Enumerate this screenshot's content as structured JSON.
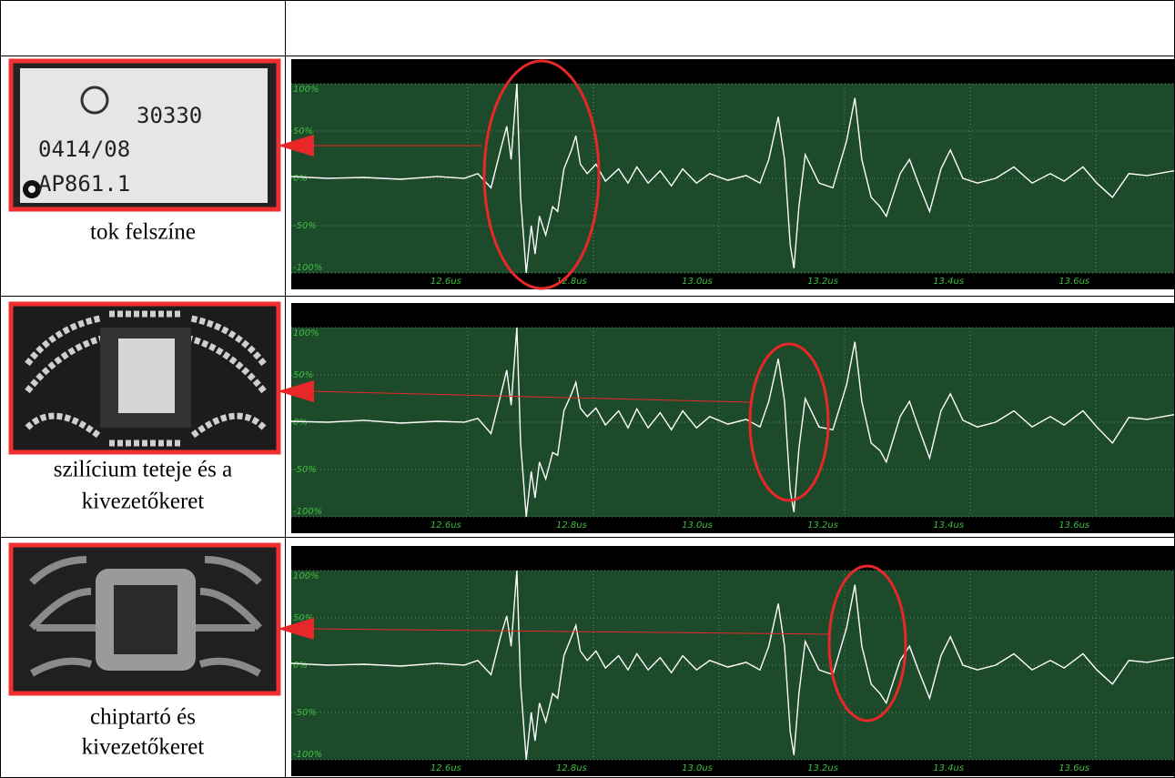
{
  "rows": [
    {
      "chip_label": [
        "30330",
        "0414/08",
        "AP861.1"
      ],
      "caption": [
        "tok felszíne"
      ]
    },
    {
      "caption": [
        "szilícium teteje és a",
        "kivezetőkeret"
      ]
    },
    {
      "caption": [
        "chiptartó és",
        "kivezetőkeret"
      ]
    }
  ],
  "chart_data": [
    {
      "type": "line",
      "x": [
        12.354,
        12.412,
        12.47,
        12.528,
        12.586,
        12.629,
        12.651,
        12.672,
        12.687,
        12.697,
        12.704,
        12.713,
        12.719,
        12.728,
        12.736,
        12.742,
        12.749,
        12.759,
        12.77,
        12.778,
        12.788,
        12.8,
        12.807,
        12.814,
        12.825,
        12.839,
        12.854,
        12.875,
        12.89,
        12.904,
        12.922,
        12.941,
        12.959,
        12.977,
        12.999,
        13.02,
        13.049,
        13.078,
        13.1,
        13.114,
        13.129,
        13.139,
        13.148,
        13.154,
        13.162,
        13.172,
        13.183,
        13.194,
        13.216,
        13.238,
        13.251,
        13.262,
        13.277,
        13.291,
        13.301,
        13.323,
        13.338,
        13.352,
        13.37,
        13.388,
        13.403,
        13.423,
        13.446,
        13.475,
        13.504,
        13.533,
        13.562,
        13.584,
        13.614,
        13.636,
        13.661,
        13.687,
        13.716,
        13.759
      ],
      "series": [
        {
          "color": "#ffffff",
          "values": [
            2,
            0,
            1,
            -1,
            2,
            0,
            5,
            -10,
            30,
            55,
            20,
            100,
            -20,
            -100,
            -50,
            -80,
            -40,
            -60,
            -30,
            -35,
            10,
            30,
            45,
            15,
            5,
            15,
            -3,
            10,
            -5,
            12,
            -5,
            8,
            -8,
            10,
            -5,
            5,
            -2,
            3,
            -5,
            20,
            65,
            20,
            -70,
            -95,
            -30,
            25,
            10,
            -5,
            -10,
            40,
            85,
            20,
            -20,
            -30,
            -40,
            5,
            20,
            -5,
            -35,
            10,
            30,
            0,
            -5,
            0,
            12,
            -5,
            5,
            -3,
            12,
            -5,
            -20,
            5,
            3,
            8
          ]
        }
      ],
      "xlim": [
        12.354,
        13.759
      ],
      "ylim": [
        -100,
        100
      ],
      "xticks": [
        {
          "value": 12.6,
          "label": "12.6us"
        },
        {
          "value": 12.8,
          "label": "12.8us"
        },
        {
          "value": 13.0,
          "label": "13.0us"
        },
        {
          "value": 13.2,
          "label": "13.2us"
        },
        {
          "value": 13.4,
          "label": "13.4us"
        },
        {
          "value": 13.6,
          "label": "13.6us"
        }
      ],
      "yticks": [
        {
          "value": 100,
          "label": "100%"
        },
        {
          "value": 50,
          "label": "50%"
        },
        {
          "value": 0,
          "label": "0%"
        },
        {
          "value": -50,
          "label": "-50%"
        },
        {
          "value": -100,
          "label": "-100%"
        }
      ],
      "grid": true
    },
    {
      "type": "line",
      "x": [
        12.354,
        12.412,
        12.47,
        12.528,
        12.586,
        12.629,
        12.651,
        12.672,
        12.687,
        12.697,
        12.704,
        12.713,
        12.719,
        12.728,
        12.736,
        12.742,
        12.749,
        12.759,
        12.77,
        12.778,
        12.788,
        12.8,
        12.807,
        12.814,
        12.825,
        12.839,
        12.854,
        12.875,
        12.89,
        12.904,
        12.922,
        12.941,
        12.959,
        12.977,
        12.999,
        13.02,
        13.049,
        13.078,
        13.1,
        13.114,
        13.129,
        13.139,
        13.148,
        13.154,
        13.162,
        13.172,
        13.183,
        13.194,
        13.216,
        13.238,
        13.251,
        13.262,
        13.277,
        13.291,
        13.301,
        13.323,
        13.338,
        13.352,
        13.37,
        13.388,
        13.403,
        13.423,
        13.446,
        13.475,
        13.504,
        13.533,
        13.562,
        13.584,
        13.614,
        13.636,
        13.661,
        13.687,
        13.716,
        13.759
      ],
      "series": [
        {
          "color": "#ffffff",
          "values": [
            1,
            0,
            2,
            -1,
            1,
            0,
            4,
            -12,
            28,
            55,
            18,
            100,
            -22,
            -100,
            -52,
            -80,
            -42,
            -60,
            -32,
            -35,
            12,
            30,
            42,
            15,
            6,
            15,
            -3,
            12,
            -6,
            14,
            -6,
            10,
            -8,
            12,
            -6,
            6,
            -2,
            3,
            -5,
            22,
            67,
            22,
            -72,
            -95,
            -28,
            25,
            10,
            -5,
            -8,
            40,
            85,
            22,
            -22,
            -30,
            -42,
            6,
            22,
            -5,
            -38,
            12,
            30,
            2,
            -5,
            0,
            12,
            -5,
            6,
            -3,
            12,
            -5,
            -22,
            5,
            3,
            8
          ]
        }
      ],
      "xlim": [
        12.354,
        13.759
      ],
      "ylim": [
        -100,
        100
      ],
      "xticks": [
        {
          "value": 12.6,
          "label": "12.6us"
        },
        {
          "value": 12.8,
          "label": "12.8us"
        },
        {
          "value": 13.0,
          "label": "13.0us"
        },
        {
          "value": 13.2,
          "label": "13.2us"
        },
        {
          "value": 13.4,
          "label": "13.4us"
        },
        {
          "value": 13.6,
          "label": "13.6us"
        }
      ],
      "yticks": [
        {
          "value": 100,
          "label": "100%"
        },
        {
          "value": 50,
          "label": "50%"
        },
        {
          "value": 0,
          "label": "0%"
        },
        {
          "value": -50,
          "label": "-50%"
        },
        {
          "value": -100,
          "label": "-100%"
        }
      ],
      "grid": true
    },
    {
      "type": "line",
      "x": [
        12.354,
        12.412,
        12.47,
        12.528,
        12.586,
        12.629,
        12.651,
        12.672,
        12.687,
        12.697,
        12.704,
        12.713,
        12.719,
        12.728,
        12.736,
        12.742,
        12.749,
        12.759,
        12.77,
        12.778,
        12.788,
        12.8,
        12.807,
        12.814,
        12.825,
        12.839,
        12.854,
        12.875,
        12.89,
        12.904,
        12.922,
        12.941,
        12.959,
        12.977,
        12.999,
        13.02,
        13.049,
        13.078,
        13.1,
        13.114,
        13.129,
        13.139,
        13.148,
        13.154,
        13.162,
        13.172,
        13.183,
        13.194,
        13.216,
        13.238,
        13.251,
        13.262,
        13.277,
        13.291,
        13.301,
        13.323,
        13.338,
        13.352,
        13.37,
        13.388,
        13.403,
        13.423,
        13.446,
        13.475,
        13.504,
        13.533,
        13.562,
        13.584,
        13.614,
        13.636,
        13.661,
        13.687,
        13.716,
        13.759
      ],
      "series": [
        {
          "color": "#ffffff",
          "values": [
            2,
            0,
            1,
            -1,
            2,
            0,
            5,
            -10,
            30,
            52,
            20,
            100,
            -20,
            -100,
            -50,
            -80,
            -40,
            -60,
            -30,
            -35,
            10,
            30,
            42,
            15,
            5,
            15,
            -3,
            10,
            -5,
            12,
            -5,
            8,
            -8,
            10,
            -5,
            5,
            -2,
            3,
            -5,
            20,
            65,
            20,
            -70,
            -95,
            -30,
            25,
            10,
            -5,
            -10,
            40,
            85,
            20,
            -20,
            -30,
            -40,
            5,
            20,
            -5,
            -35,
            10,
            30,
            0,
            -5,
            0,
            12,
            -5,
            5,
            -3,
            12,
            -5,
            -20,
            5,
            3,
            8
          ]
        }
      ],
      "xlim": [
        12.354,
        13.759
      ],
      "ylim": [
        -100,
        100
      ],
      "xticks": [
        {
          "value": 12.6,
          "label": "12.6us"
        },
        {
          "value": 12.8,
          "label": "12.8us"
        },
        {
          "value": 13.0,
          "label": "13.0us"
        },
        {
          "value": 13.2,
          "label": "13.2us"
        },
        {
          "value": 13.4,
          "label": "13.4us"
        },
        {
          "value": 13.6,
          "label": "13.6us"
        }
      ],
      "yticks": [
        {
          "value": 100,
          "label": "100%"
        },
        {
          "value": 50,
          "label": "50%"
        },
        {
          "value": 0,
          "label": "0%"
        },
        {
          "value": -50,
          "label": "-50%"
        },
        {
          "value": -100,
          "label": "-100%"
        }
      ],
      "grid": true
    }
  ]
}
